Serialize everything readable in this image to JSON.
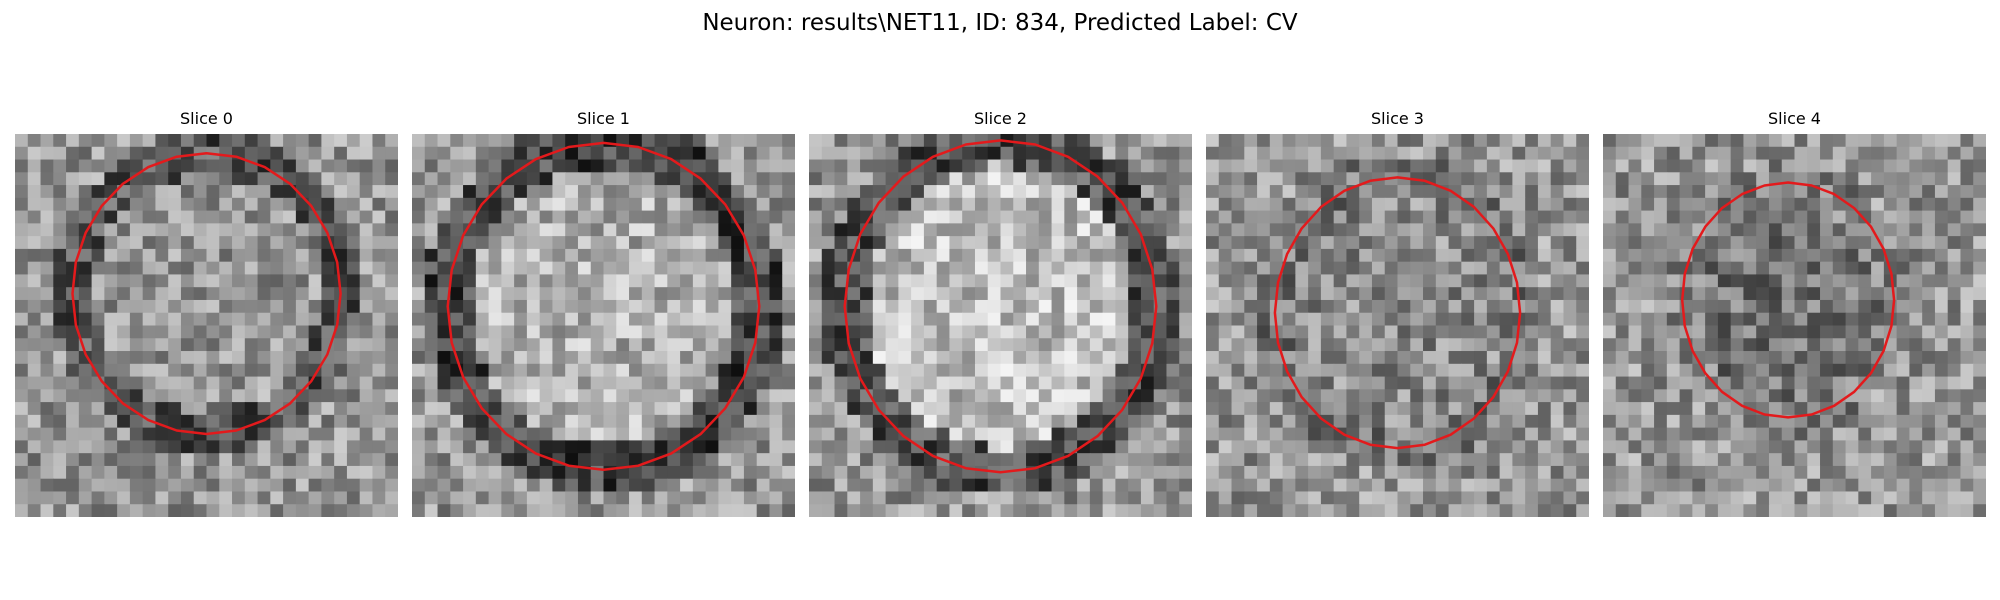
{
  "figure": {
    "title": "Neuron: results\\NET11, ID: 834, Predicted Label: CV",
    "colormap": "grayscale",
    "contour_color": "#e31a1c",
    "grid_size": 30
  },
  "slices": [
    {
      "label": "Slice 0",
      "contour": {
        "center": [
          15.0,
          12.5
        ],
        "rx": 10.5,
        "ry": 11.0
      },
      "mean_gray": 150,
      "ring_gray": 85
    },
    {
      "label": "Slice 1",
      "contour": {
        "center": [
          15.0,
          13.5
        ],
        "rx": 12.2,
        "ry": 12.8
      },
      "mean_gray": 175,
      "ring_gray": 70
    },
    {
      "label": "Slice 2",
      "contour": {
        "center": [
          15.0,
          13.5
        ],
        "rx": 12.2,
        "ry": 13.0
      },
      "mean_gray": 190,
      "ring_gray": 80
    },
    {
      "label": "Slice 3",
      "contour": {
        "center": [
          15.0,
          14.0
        ],
        "rx": 9.6,
        "ry": 10.6
      },
      "mean_gray": 140,
      "ring_gray": 120
    },
    {
      "label": "Slice 4",
      "contour": {
        "center": [
          14.5,
          13.0
        ],
        "rx": 8.3,
        "ry": 9.2
      },
      "mean_gray": 115,
      "ring_gray": 130
    }
  ]
}
